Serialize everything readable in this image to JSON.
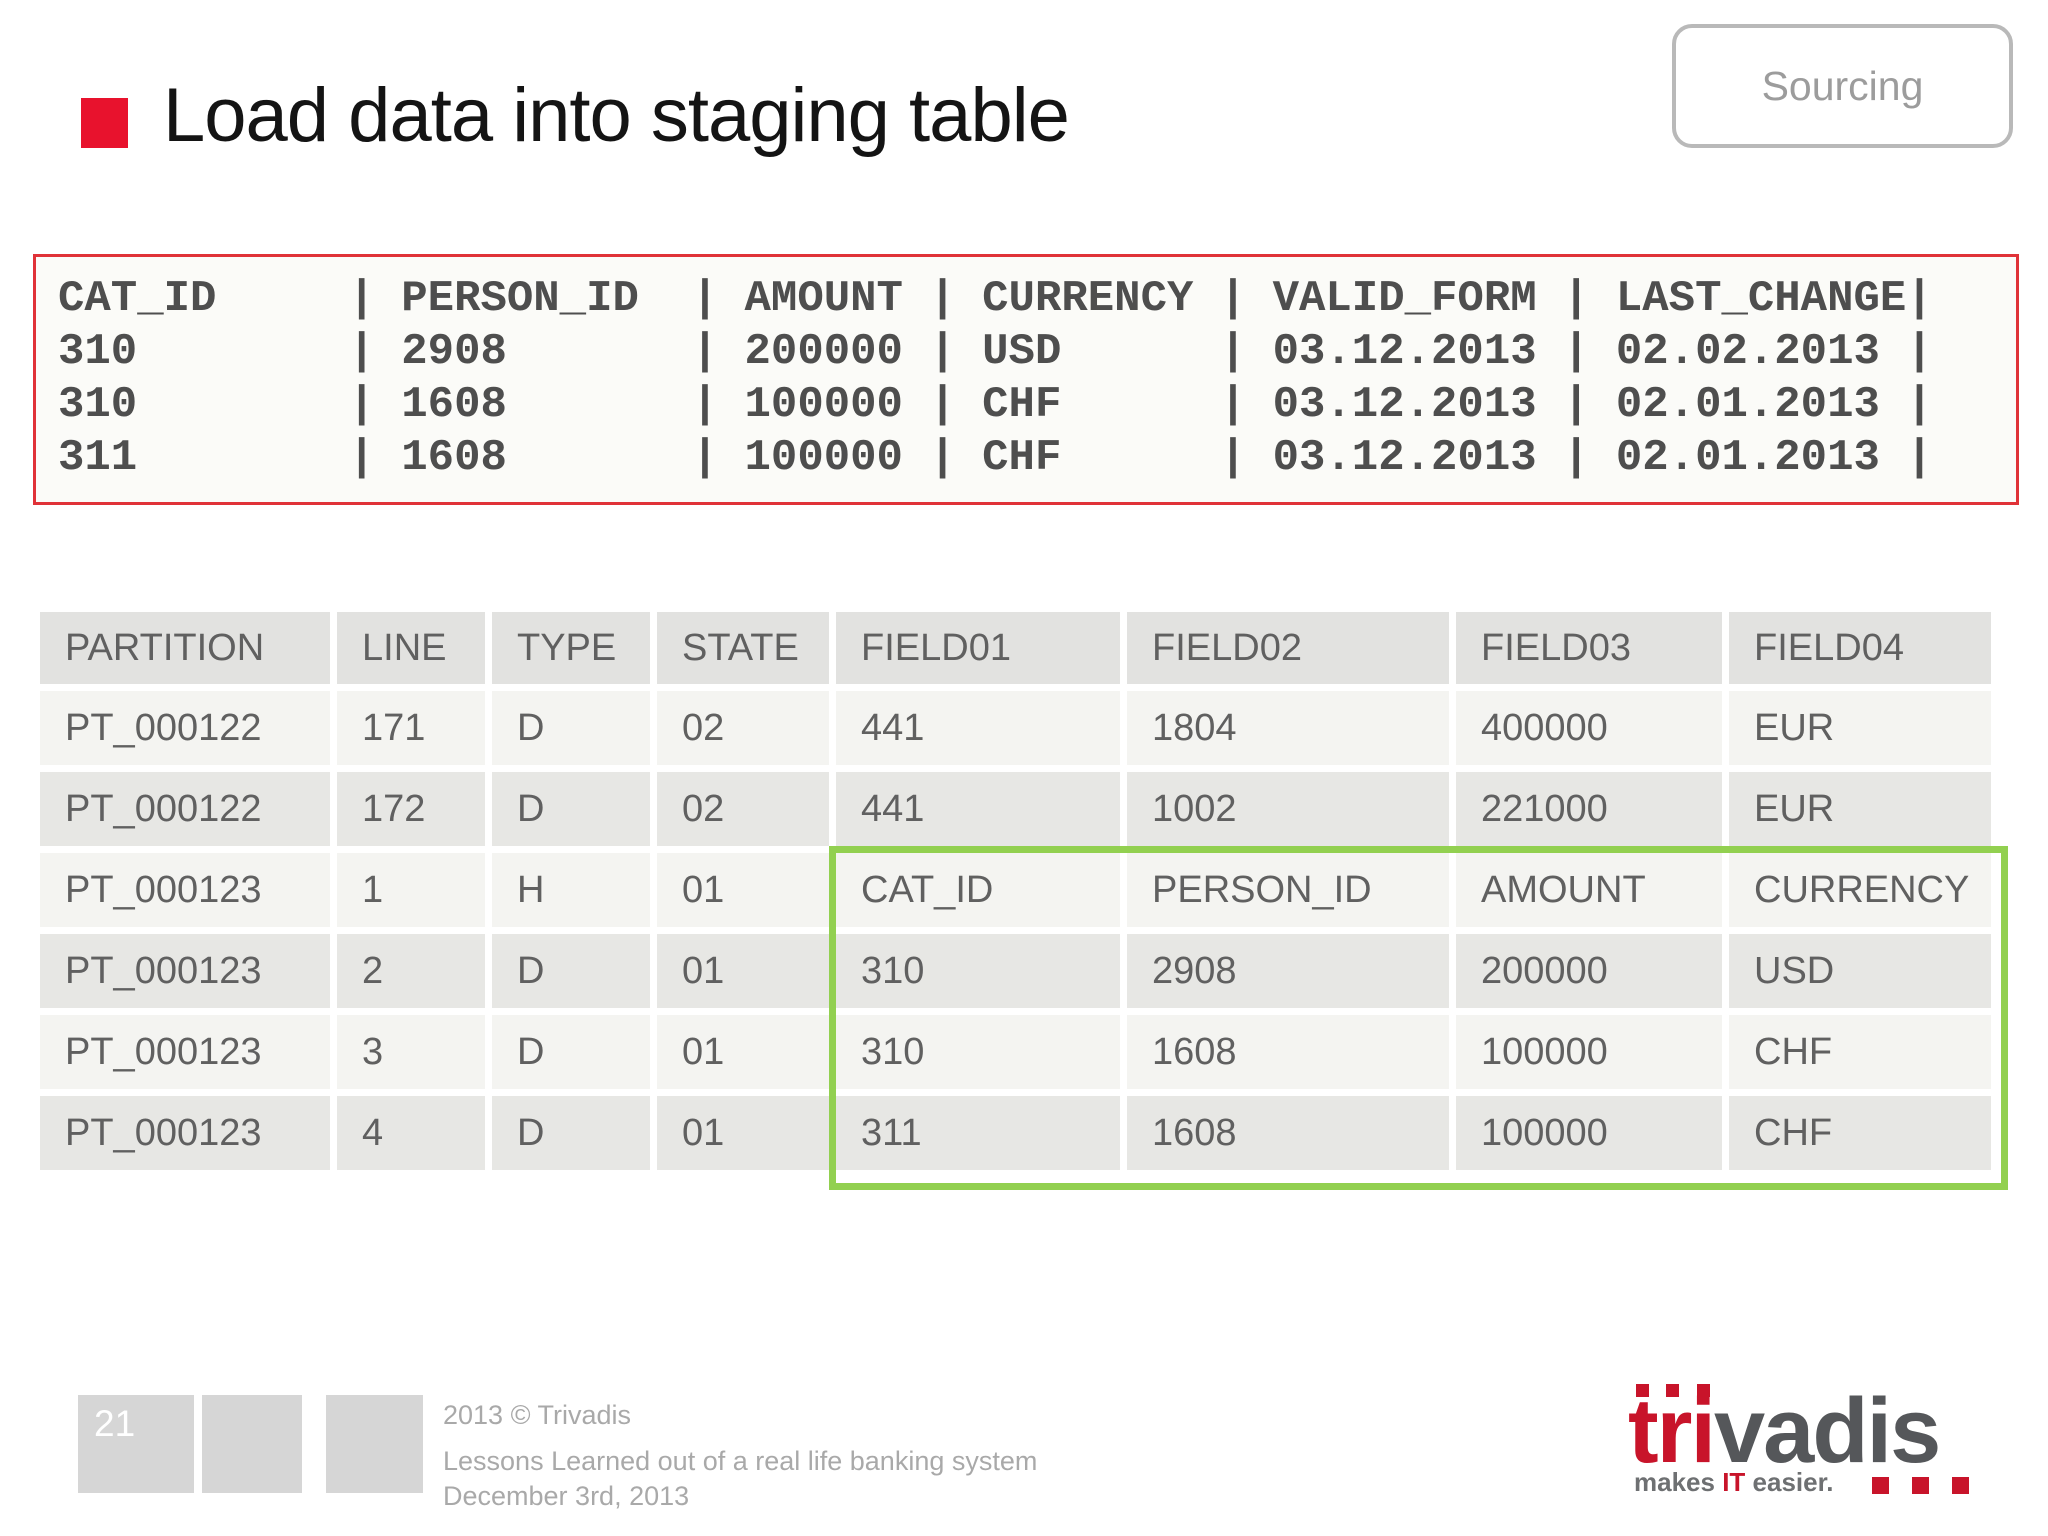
{
  "slide": {
    "title": "Load data into staging table",
    "tag": "Sourcing"
  },
  "code_block": {
    "lines": [
      "CAT_ID     | PERSON_ID  | AMOUNT | CURRENCY | VALID_FORM | LAST_CHANGE|",
      "310        | 2908       | 200000 | USD      | 03.12.2013 | 02.02.2013 |",
      "310        | 1608       | 100000 | CHF      | 03.12.2013 | 02.01.2013 |",
      "311        | 1608       | 100000 | CHF      | 03.12.2013 | 02.01.2013 |"
    ]
  },
  "staging_table": {
    "columns": [
      "PARTITION",
      "LINE",
      "TYPE",
      "STATE",
      "FIELD01",
      "FIELD02",
      "FIELD03",
      "FIELD04"
    ],
    "rows": [
      [
        "PT_000122",
        "171",
        "D",
        "02",
        "441",
        "1804",
        "400000",
        "EUR"
      ],
      [
        "PT_000122",
        "172",
        "D",
        "02",
        "441",
        "1002",
        "221000",
        "EUR"
      ],
      [
        "PT_000123",
        "1",
        "H",
        "01",
        "CAT_ID",
        "PERSON_ID",
        "AMOUNT",
        "CURRENCY"
      ],
      [
        "PT_000123",
        "2",
        "D",
        "01",
        "310",
        "2908",
        "200000",
        "USD"
      ],
      [
        "PT_000123",
        "3",
        "D",
        "01",
        "310",
        "1608",
        "100000",
        "CHF"
      ],
      [
        "PT_000123",
        "4",
        "D",
        "01",
        "311",
        "1608",
        "100000",
        "CHF"
      ]
    ]
  },
  "footer": {
    "page_number": "21",
    "copyright": "2013 © Trivadis",
    "subtitle": "Lessons Learned out of a real life banking system",
    "date": "December 3rd, 2013"
  },
  "logo": {
    "brand_red": "tri",
    "brand_gray": "vadis",
    "tagline_pre": "makes ",
    "tagline_accent": "IT",
    "tagline_post": " easier."
  },
  "colors": {
    "accent_red": "#e8122d",
    "code_border_red": "#e03238",
    "highlight_green": "#92d050",
    "logo_red": "#c8142a",
    "logo_gray": "#55575a"
  }
}
